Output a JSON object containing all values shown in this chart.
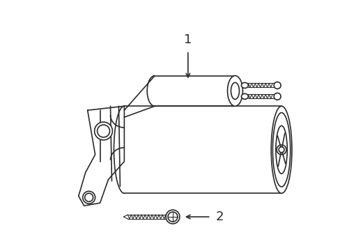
{
  "background_color": "#ffffff",
  "line_color": "#2a2a2a",
  "line_width": 1.2,
  "label1": "1",
  "label2": "2",
  "figsize": [
    4.89,
    3.6
  ],
  "dpi": 100
}
